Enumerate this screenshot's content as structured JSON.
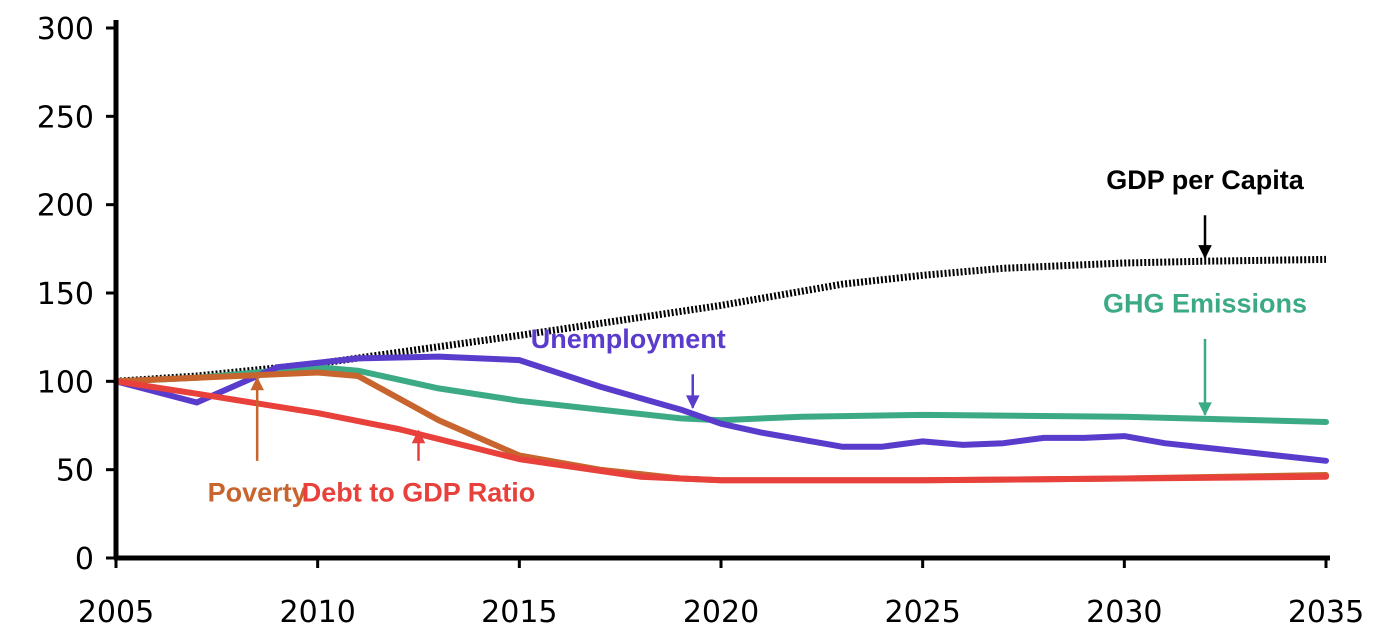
{
  "chart_data": {
    "type": "line",
    "title": "",
    "xlabel": "",
    "ylabel": "",
    "xlim": [
      2005,
      2035
    ],
    "ylim": [
      0,
      300
    ],
    "x_ticks": [
      "2005",
      "2010",
      "2015",
      "2020",
      "2025",
      "2030",
      "2035"
    ],
    "y_ticks": [
      "0",
      "50",
      "100",
      "150",
      "200",
      "250",
      "300"
    ],
    "grid": false,
    "legend": "none",
    "series": [
      {
        "name": "GDP per Capita",
        "color": "#000000",
        "style": "dotted-thick",
        "points": [
          [
            2005,
            100
          ],
          [
            2007,
            103
          ],
          [
            2010,
            110
          ],
          [
            2015,
            126
          ],
          [
            2020,
            143
          ],
          [
            2023,
            155
          ],
          [
            2025,
            160
          ],
          [
            2027,
            164
          ],
          [
            2030,
            167
          ],
          [
            2032,
            168
          ],
          [
            2035,
            169
          ]
        ]
      },
      {
        "name": "GHG Emissions",
        "color": "#3daa86",
        "points": [
          [
            2005,
            100
          ],
          [
            2007,
            102
          ],
          [
            2010,
            108
          ],
          [
            2011,
            106
          ],
          [
            2013,
            96
          ],
          [
            2015,
            89
          ],
          [
            2017,
            84
          ],
          [
            2019,
            79
          ],
          [
            2020,
            78
          ],
          [
            2022,
            80
          ],
          [
            2025,
            81
          ],
          [
            2030,
            80
          ],
          [
            2035,
            77
          ]
        ]
      },
      {
        "name": "Unemployment",
        "color": "#5a3ccc",
        "points": [
          [
            2005,
            100
          ],
          [
            2007,
            88
          ],
          [
            2009,
            108
          ],
          [
            2011,
            113
          ],
          [
            2013,
            114
          ],
          [
            2015,
            112
          ],
          [
            2017,
            97
          ],
          [
            2019,
            84
          ],
          [
            2020,
            76
          ],
          [
            2021,
            71
          ],
          [
            2023,
            63
          ],
          [
            2024,
            63
          ],
          [
            2025,
            66
          ],
          [
            2026,
            64
          ],
          [
            2027,
            65
          ],
          [
            2028,
            68
          ],
          [
            2029,
            68
          ],
          [
            2030,
            69
          ],
          [
            2031,
            65
          ],
          [
            2033,
            60
          ],
          [
            2035,
            55
          ]
        ]
      },
      {
        "name": "Poverty",
        "color": "#c8642e",
        "points": [
          [
            2005,
            100
          ],
          [
            2007,
            102
          ],
          [
            2010,
            105
          ],
          [
            2011,
            103
          ],
          [
            2013,
            78
          ],
          [
            2015,
            58
          ],
          [
            2017,
            50
          ],
          [
            2019,
            45
          ],
          [
            2020,
            44
          ],
          [
            2025,
            44
          ],
          [
            2030,
            45
          ],
          [
            2035,
            47
          ]
        ]
      },
      {
        "name": "Debt to GDP Ratio",
        "color": "#e8403a",
        "points": [
          [
            2005,
            100
          ],
          [
            2007,
            93
          ],
          [
            2010,
            82
          ],
          [
            2012,
            73
          ],
          [
            2015,
            56
          ],
          [
            2018,
            46
          ],
          [
            2020,
            44
          ],
          [
            2025,
            44
          ],
          [
            2030,
            45
          ],
          [
            2035,
            46
          ]
        ]
      }
    ],
    "annotations": [
      {
        "text": "GDP per Capita",
        "series": "GDP per Capita",
        "color": "#000000",
        "label_at": [
          2032,
          209
        ],
        "arrow_from": [
          2032,
          194
        ],
        "arrow_to": [
          2032,
          170
        ]
      },
      {
        "text": "GHG Emissions",
        "series": "GHG Emissions",
        "color": "#3daa86",
        "label_at": [
          2032,
          139
        ],
        "arrow_from": [
          2032,
          124
        ],
        "arrow_to": [
          2032,
          81
        ]
      },
      {
        "text": "Unemployment",
        "series": "Unemployment",
        "color": "#5a3ccc",
        "label_at": [
          2017.7,
          119
        ],
        "arrow_from": [
          2019.3,
          104
        ],
        "arrow_to": [
          2019.3,
          85
        ]
      },
      {
        "text": "Poverty",
        "series": "Poverty",
        "color": "#c8642e",
        "label_at": [
          2008.5,
          32
        ],
        "arrow_from": [
          2008.5,
          55
        ],
        "arrow_to": [
          2008.5,
          102
        ]
      },
      {
        "text": "Debt to GDP Ratio",
        "series": "Debt to GDP Ratio",
        "color": "#e8403a",
        "label_at": [
          2012.5,
          32
        ],
        "arrow_from": [
          2012.5,
          55
        ],
        "arrow_to": [
          2012.5,
          72
        ]
      }
    ]
  }
}
